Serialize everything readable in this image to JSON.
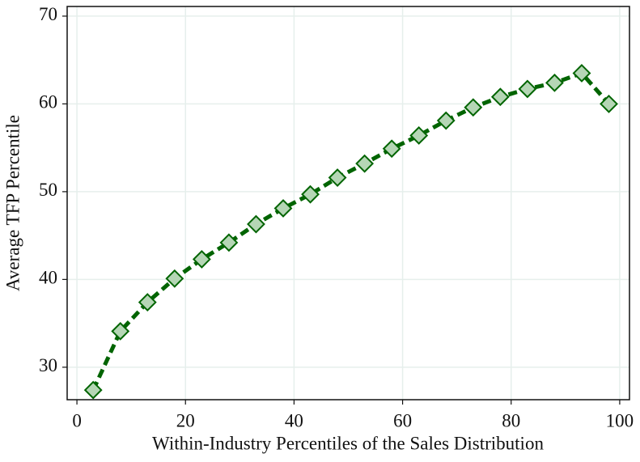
{
  "chart_data": {
    "type": "line",
    "xlabel": "Within-Industry Percentiles of the Sales Distribution",
    "ylabel": "Average TFP Percentile",
    "x": [
      3,
      8,
      13,
      18,
      23,
      28,
      33,
      38,
      43,
      48,
      53,
      58,
      63,
      68,
      73,
      78,
      83,
      88,
      93,
      98
    ],
    "series": [
      {
        "color": "#006400",
        "marker_fill": "#b5d6b5",
        "values": [
          27.4,
          34.1,
          37.4,
          40.1,
          42.3,
          44.2,
          46.3,
          48.1,
          49.7,
          51.6,
          53.2,
          54.9,
          56.4,
          58.1,
          59.6,
          60.8,
          61.7,
          62.4,
          63.5,
          60.0
        ]
      }
    ],
    "xlim": [
      -1.8,
      101.8
    ],
    "ylim": [
      26.3,
      71.1
    ],
    "xticks": [
      0,
      20,
      40,
      60,
      80,
      100
    ],
    "yticks": [
      30,
      40,
      50,
      60,
      70
    ],
    "grid": true
  }
}
